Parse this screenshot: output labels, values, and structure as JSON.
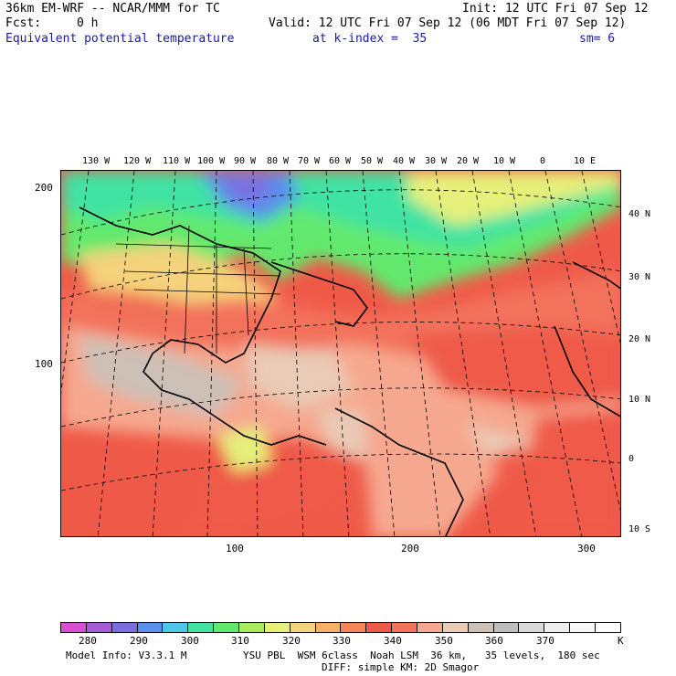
{
  "header": {
    "model": "36km EM-WRF -- NCAR/MMM for TC",
    "init": "Init: 12 UTC Fri 07 Sep 12",
    "fcst_label": "Fcst:",
    "fcst_value": "0 h",
    "valid": "Valid: 12 UTC Fri 07 Sep 12 (06 MDT Fri 07 Sep 12)",
    "field": "Equivalent potential temperature",
    "kindex": "at k-index =  35",
    "sm": "sm= 6"
  },
  "top_lon_labels": [
    "130 W",
    "120 W",
    "110 W",
    "100 W",
    "90 W",
    "80 W",
    "70 W",
    "60 W",
    "50 W",
    "40 W",
    "30 W",
    "20 W",
    "10 W",
    "0",
    "10 E"
  ],
  "right_lat_labels": [
    "40 N",
    "30 N",
    "20 N",
    "10 N",
    "0",
    "10 S"
  ],
  "left_axis": [
    "200",
    "100"
  ],
  "bottom_axis": [
    "100",
    "200",
    "300"
  ],
  "colorbar": {
    "colors": [
      "#d94fd1",
      "#a55ad6",
      "#7b6fe0",
      "#5a8fec",
      "#4fc8e8",
      "#41e3a3",
      "#62e96d",
      "#a6ec5f",
      "#e6f07a",
      "#f5d27b",
      "#f6b067",
      "#f2855a",
      "#ef5a48",
      "#f3725c",
      "#f6a88f",
      "#e9cbb6",
      "#cdc0b6",
      "#bdbdbd",
      "#d9d9d9",
      "#eeeeee",
      "#f7f7f7",
      "#ffffff"
    ],
    "labels": [
      "280",
      "290",
      "300",
      "310",
      "320",
      "330",
      "340",
      "350",
      "360",
      "370"
    ],
    "unit": "K"
  },
  "footer": {
    "model_info": "Model Info: V3.3.1 M",
    "physics": "YSU PBL  WSM 6class  Noah LSM  36 km,   35 levels,  180 sec",
    "diff": "DIFF: simple KM: 2D Smagor"
  }
}
